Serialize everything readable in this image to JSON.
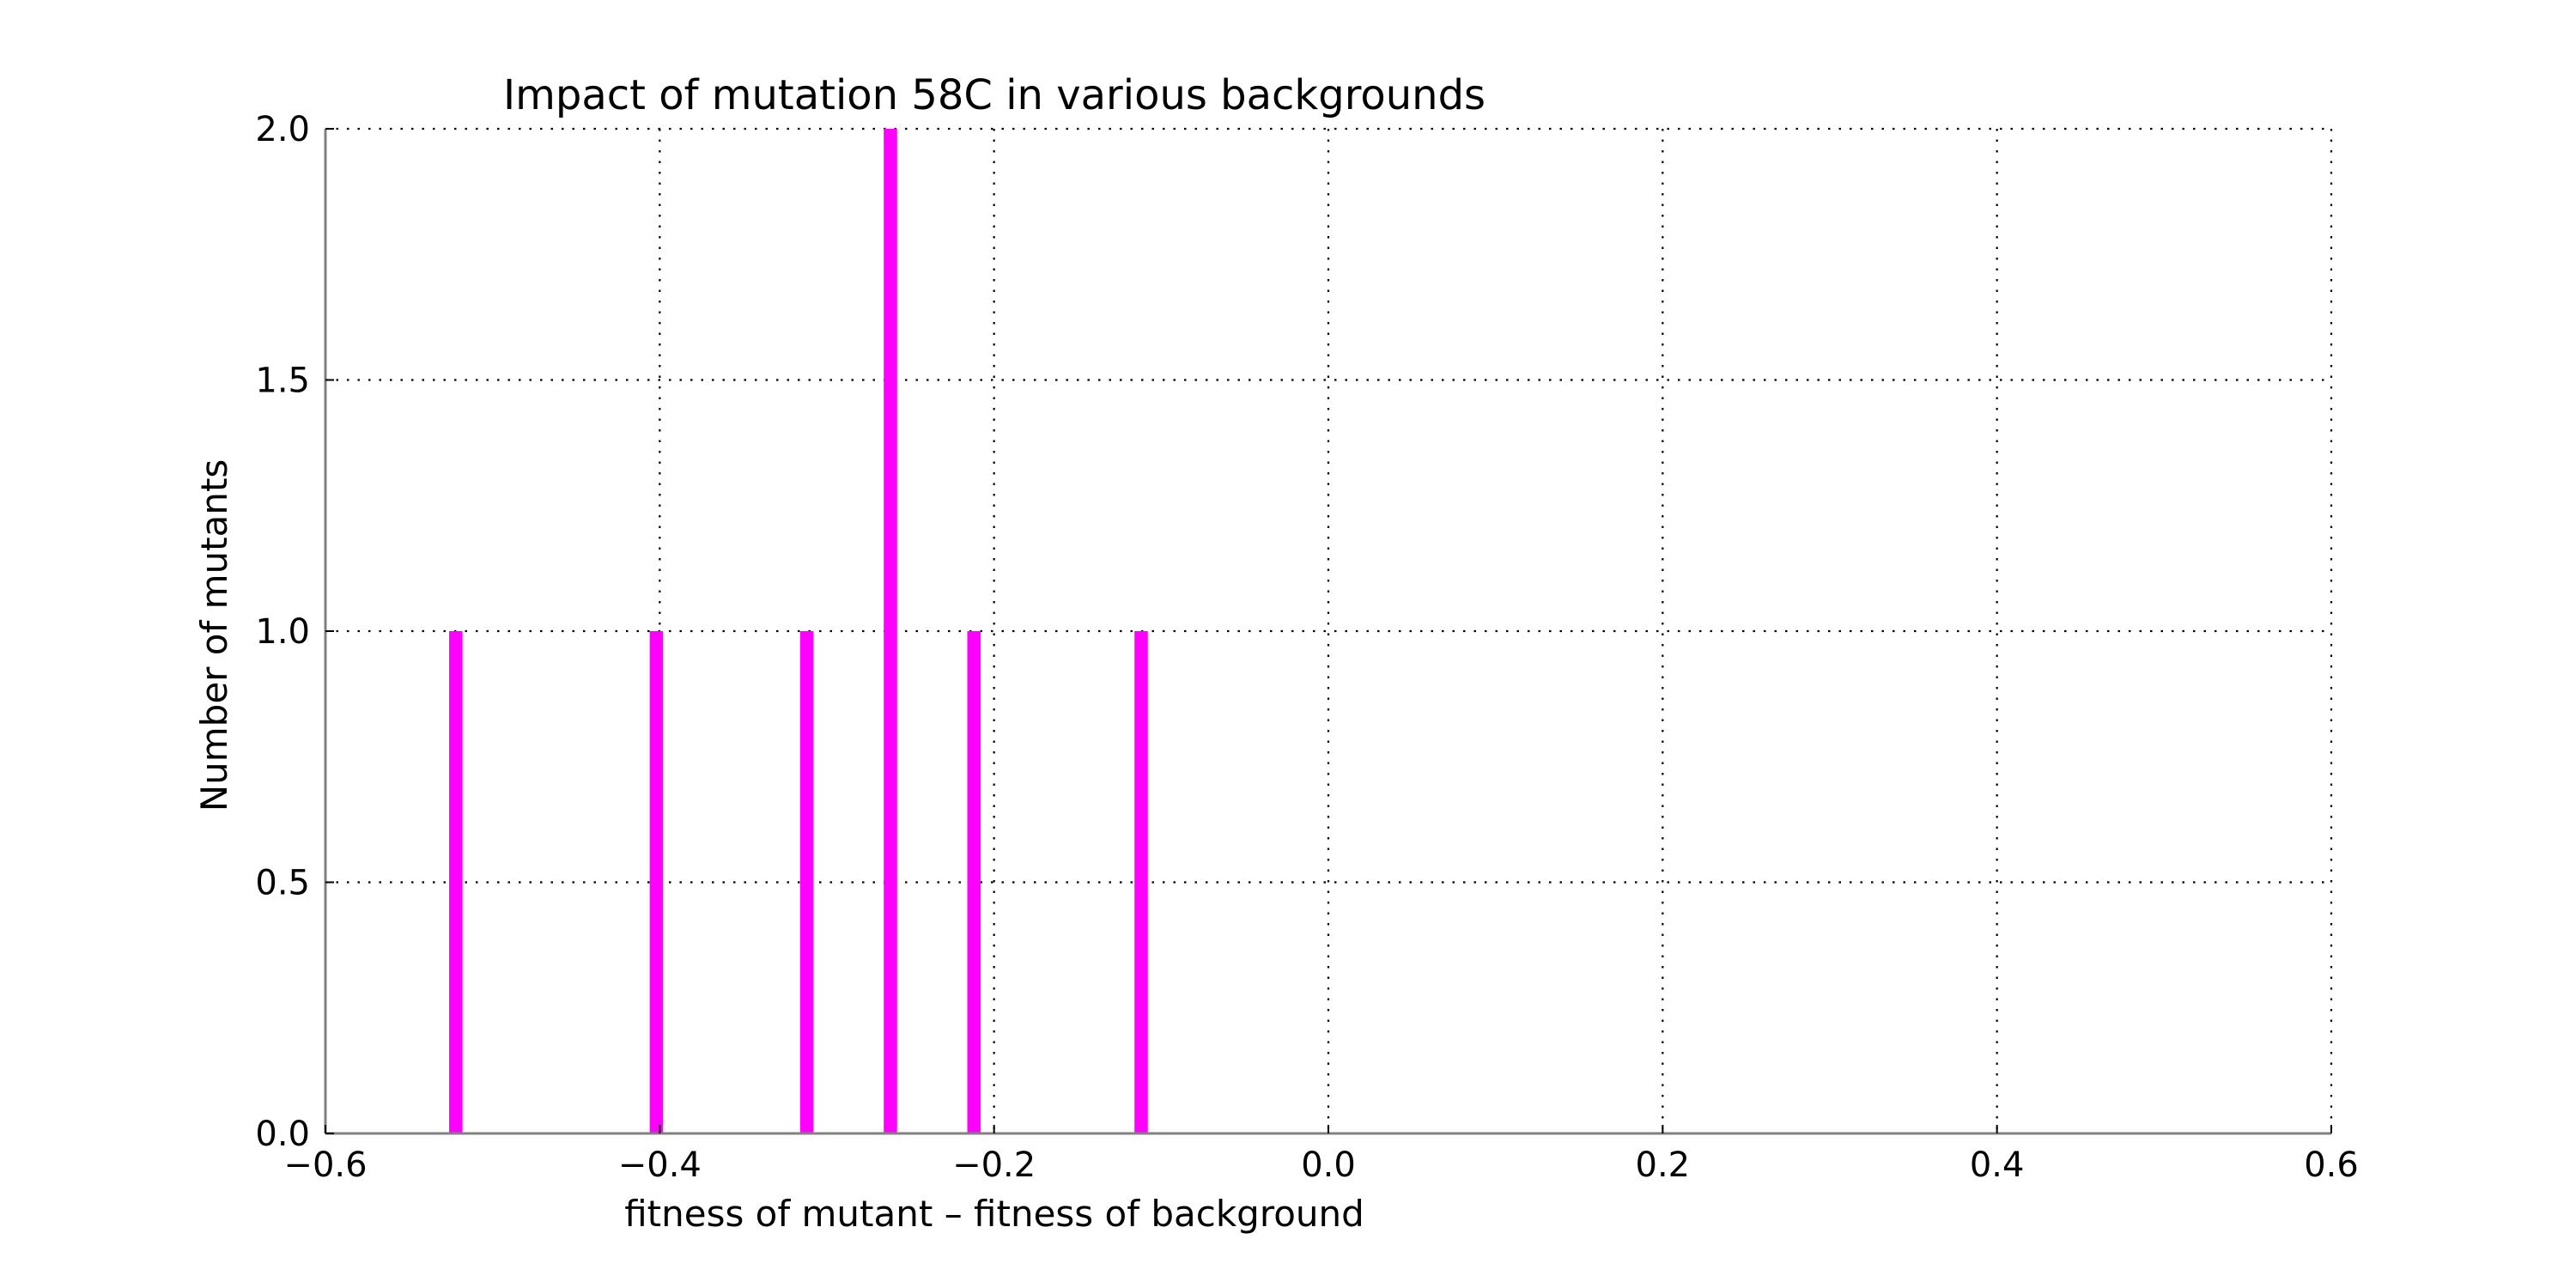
{
  "chart_data": {
    "type": "bar",
    "title": "Impact of mutation 58C in various backgrounds",
    "xlabel": "fitness of mutant  –  fitness of background",
    "ylabel": "Number of mutants",
    "xlim": [
      -0.6,
      0.6
    ],
    "ylim": [
      0.0,
      2.0
    ],
    "x_ticks": [
      -0.6,
      -0.4,
      -0.2,
      0.0,
      0.2,
      0.4,
      0.6
    ],
    "x_tick_labels": [
      "−0.6",
      "−0.4",
      "−0.2",
      "0.0",
      "0.2",
      "0.4",
      "0.6"
    ],
    "y_ticks": [
      0.0,
      0.5,
      1.0,
      1.5,
      2.0
    ],
    "y_tick_labels": [
      "0.0",
      "0.5",
      "1.0",
      "1.5",
      "2.0"
    ],
    "grid": true,
    "bar_width": 0.008,
    "bar_color": "#ff00ff",
    "bars": [
      {
        "x": -0.526,
        "count": 1
      },
      {
        "x": -0.406,
        "count": 1
      },
      {
        "x": -0.316,
        "count": 1
      },
      {
        "x": -0.266,
        "count": 2
      },
      {
        "x": -0.216,
        "count": 1
      },
      {
        "x": -0.116,
        "count": 1
      }
    ]
  }
}
